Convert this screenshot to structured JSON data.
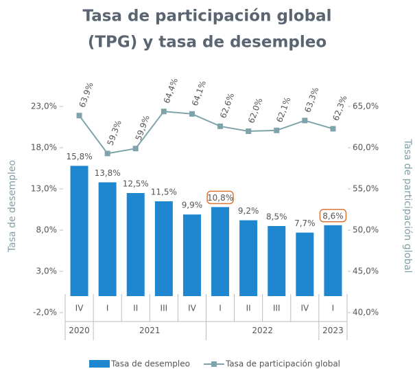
{
  "chart_data": {
    "type": "bar_line",
    "title": "Tasa de participación global",
    "subtitle": "(TPG) y tasa de desempleo",
    "ylabel": "Tasa de desempleo",
    "y2label": "Tasa de participación global",
    "categories": [
      "IV",
      "I",
      "II",
      "III",
      "IV",
      "I",
      "II",
      "III",
      "IV",
      "I"
    ],
    "years": [
      "2020",
      "2021",
      null,
      null,
      null,
      "2022",
      null,
      null,
      null,
      "2023"
    ],
    "highlighted": [
      false,
      false,
      false,
      false,
      false,
      true,
      false,
      false,
      false,
      true
    ],
    "series": [
      {
        "name": "Tasa de desempleo",
        "type": "bar",
        "color": "#1f87d0",
        "values": [
          15.8,
          13.8,
          12.5,
          11.5,
          9.9,
          10.8,
          9.2,
          8.5,
          7.7,
          8.6
        ],
        "value_labels": [
          "15,8%",
          "13,8%",
          "12,5%",
          "11,5%",
          "9,9%",
          "10,8%",
          "9,2%",
          "8,5%",
          "7,7%",
          "8,6%"
        ]
      },
      {
        "name": "Tasa de participación global",
        "type": "line",
        "axis": "y2",
        "color": "#7fa3aa",
        "values": [
          63.9,
          59.3,
          59.9,
          64.4,
          64.1,
          62.6,
          62.0,
          62.1,
          63.3,
          62.3
        ],
        "value_labels": [
          "63,9%",
          "59,3%",
          "59,9%",
          "64,4%",
          "64,1%",
          "62,6%",
          "62,0%",
          "62,1%",
          "63,3%",
          "62,3%"
        ]
      }
    ],
    "ylim": [
      -2,
      23
    ],
    "yticks": [
      {
        "value": -2,
        "label": "-2,0%"
      },
      {
        "value": 3,
        "label": "3,0%"
      },
      {
        "value": 8,
        "label": "8,0%"
      },
      {
        "value": 13,
        "label": "13,0%"
      },
      {
        "value": 18,
        "label": "18,0%"
      },
      {
        "value": 23,
        "label": "23,0%"
      }
    ],
    "y2lim": [
      40,
      65
    ],
    "y2ticks": [
      {
        "value": 40,
        "label": "40,0%"
      },
      {
        "value": 45,
        "label": "45,0%"
      },
      {
        "value": 50,
        "label": "50,0%"
      },
      {
        "value": 55,
        "label": "55,0%"
      },
      {
        "value": 60,
        "label": "60,0%"
      },
      {
        "value": 65,
        "label": "65,0%"
      }
    ],
    "highlight_color": "#d9773a",
    "legend": "bottom"
  }
}
